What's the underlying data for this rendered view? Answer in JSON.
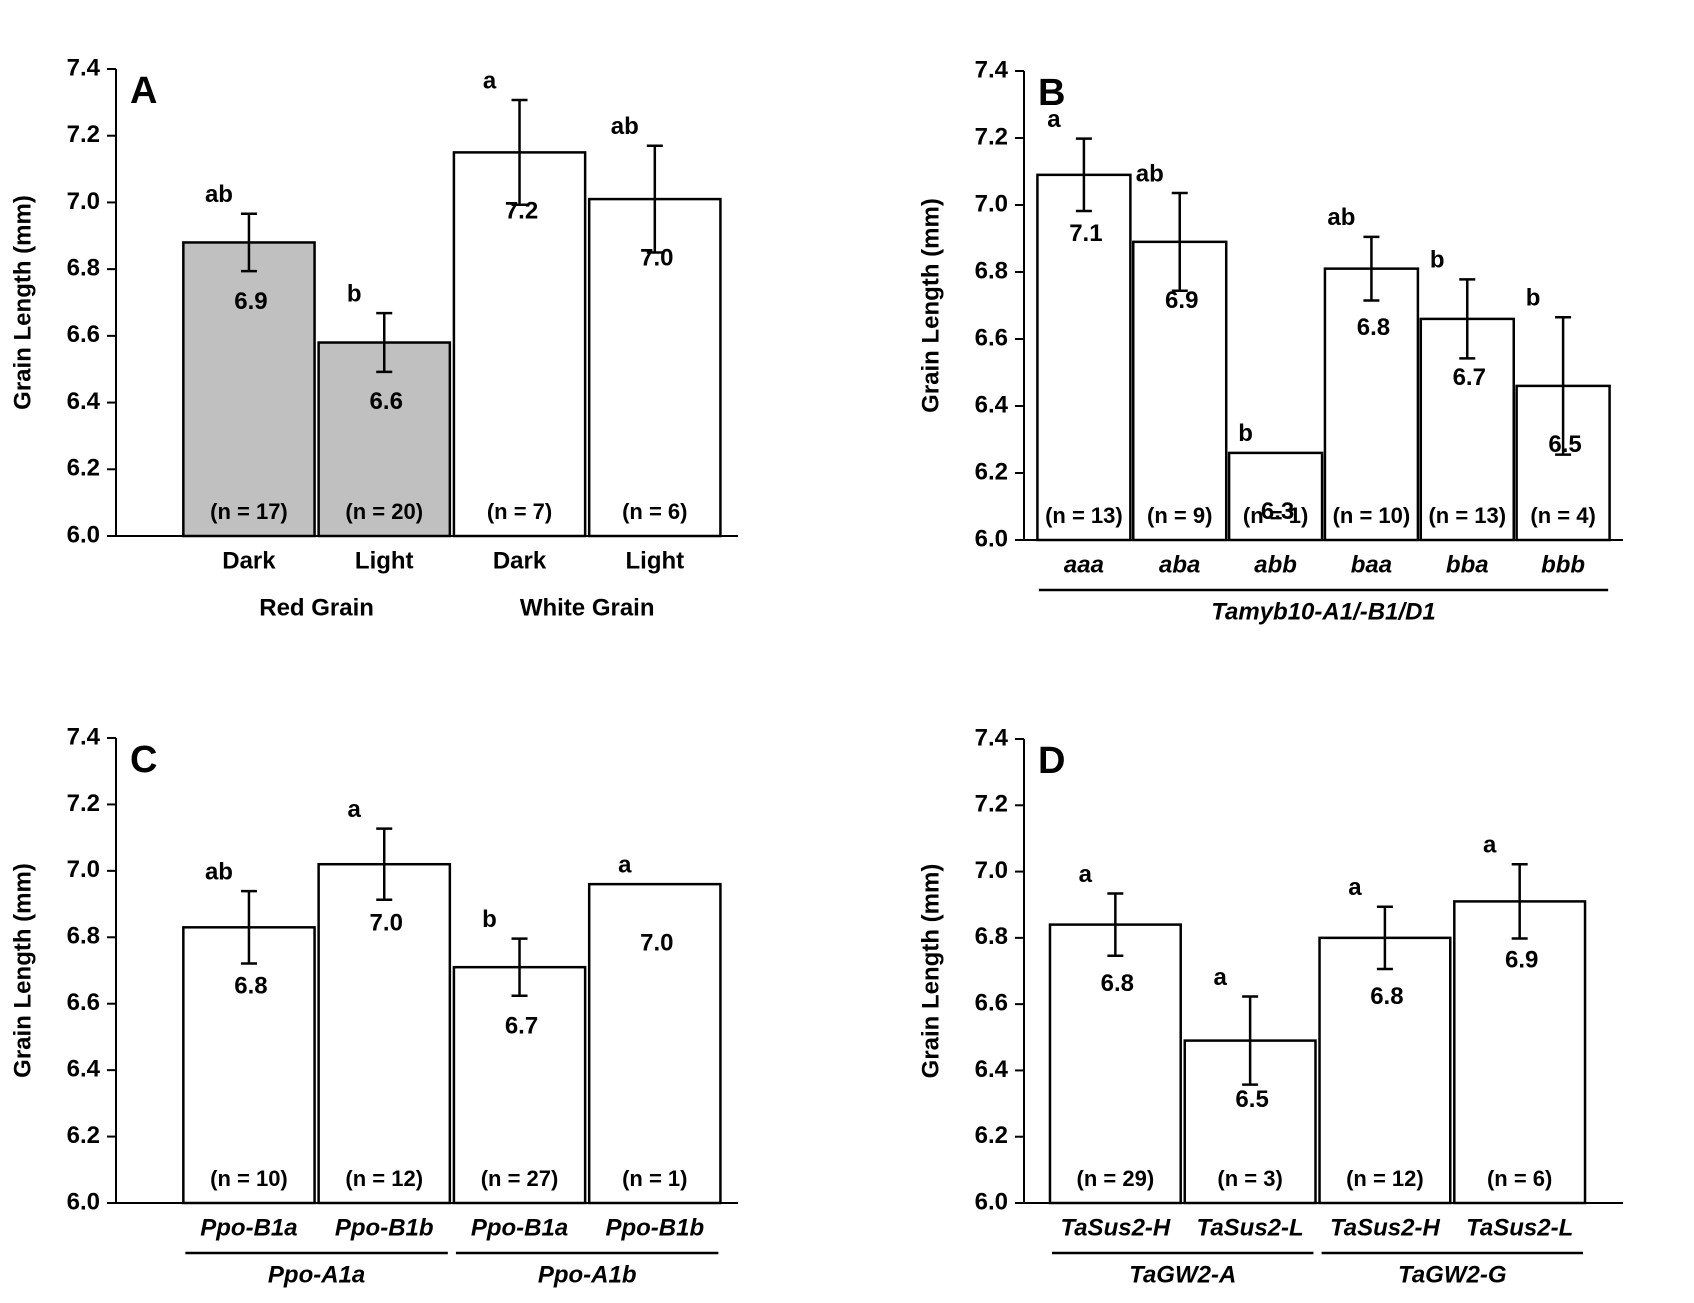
{
  "chart_data": [
    {
      "type": "bar",
      "title": "A",
      "y_label": "Grain Length (mm)",
      "ylim": [
        6.0,
        7.4
      ],
      "yticks": [
        {
          "value": 6,
          "label": "6.0"
        },
        6.2,
        6.4,
        6.6,
        6.8,
        {
          "value": 7,
          "label": "7.0"
        },
        7.2,
        7.4
      ],
      "groups": [
        {
          "label": "Red Grain",
          "categories": [
            "Dark",
            "Light"
          ]
        },
        {
          "label": "White Grain",
          "categories": [
            "Dark",
            "Light"
          ]
        }
      ],
      "group_underline": false,
      "italic_categories": false,
      "values": [
        6.88,
        6.58,
        7.15,
        7.01
      ],
      "value_labels": [
        "6.9",
        "6.6",
        "7.2",
        "7.0"
      ],
      "errors": [
        0.086,
        0.088,
        0.157,
        0.16
      ],
      "letters": [
        "ab",
        "b",
        "a",
        "ab"
      ],
      "n_labels": [
        "(n = 17)",
        "(n = 20)",
        "(n = 7)",
        "(n = 6)"
      ],
      "colors": [
        "#c0c0c0",
        "#c0c0c0",
        "#ffffff",
        "#ffffff"
      ]
    },
    {
      "type": "bar",
      "title": "B",
      "y_label": "Grain Length (mm)",
      "ylim": [
        6.0,
        7.4
      ],
      "yticks": [
        {
          "value": 6,
          "label": "6.0"
        },
        6.2,
        6.4,
        6.6,
        6.8,
        {
          "value": 7,
          "label": "7.0"
        },
        7.2,
        7.4
      ],
      "groups": [
        {
          "label": "Tamyb10-A1/-B1/D1",
          "categories": [
            "aaa",
            "aba",
            "abb",
            "baa",
            "bba",
            "bbb"
          ]
        }
      ],
      "group_underline": true,
      "italic_categories": true,
      "values": [
        7.09,
        6.89,
        6.26,
        6.81,
        6.66,
        6.46
      ],
      "value_labels": [
        "7.1",
        "6.9",
        "6.3",
        "6.8",
        "6.7",
        "6.5"
      ],
      "errors": [
        0.108,
        0.146,
        null,
        0.095,
        0.118,
        0.205
      ],
      "letters": [
        "a",
        "ab",
        "b",
        "ab",
        "b",
        "b"
      ],
      "n_labels": [
        "(n = 13)",
        "(n = 9)",
        "(n = 1)",
        "(n = 10)",
        "(n = 13)",
        "(n = 4)"
      ],
      "colors": [
        "#ffffff",
        "#ffffff",
        "#ffffff",
        "#ffffff",
        "#ffffff",
        "#ffffff"
      ]
    },
    {
      "type": "bar",
      "title": "C",
      "y_label": "Grain Length (mm)",
      "ylim": [
        6.0,
        7.4
      ],
      "yticks": [
        {
          "value": 6,
          "label": "6.0"
        },
        6.2,
        6.4,
        6.6,
        6.8,
        {
          "value": 7,
          "label": "7.0"
        },
        7.2,
        7.4
      ],
      "groups": [
        {
          "label": "Ppo-A1a",
          "categories": [
            "Ppo-B1a",
            "Ppo-B1b"
          ]
        },
        {
          "label": "Ppo-A1b",
          "categories": [
            "Ppo-B1a",
            "Ppo-B1b"
          ]
        }
      ],
      "group_underline": true,
      "italic_categories": true,
      "values": [
        6.83,
        7.02,
        6.71,
        6.96
      ],
      "value_labels": [
        "6.8",
        "7.0",
        "6.7",
        "7.0"
      ],
      "errors": [
        0.109,
        0.107,
        0.086,
        null
      ],
      "letters": [
        "ab",
        "a",
        "b",
        "a"
      ],
      "n_labels": [
        "(n = 10)",
        "(n = 12)",
        "(n = 27)",
        "(n = 1)"
      ],
      "colors": [
        "#ffffff",
        "#ffffff",
        "#ffffff",
        "#ffffff"
      ]
    },
    {
      "type": "bar",
      "title": "D",
      "y_label": "Grain Length (mm)",
      "ylim": [
        6.0,
        7.4
      ],
      "yticks": [
        {
          "value": 6,
          "label": "6.0"
        },
        6.2,
        6.4,
        6.6,
        6.8,
        {
          "value": 7,
          "label": "7.0"
        },
        7.2,
        7.4
      ],
      "groups": [
        {
          "label": "TaGW2-A",
          "categories": [
            "TaSus2-H",
            "TaSus2-L"
          ]
        },
        {
          "label": "TaGW2-G",
          "categories": [
            "TaSus2-H",
            "TaSus2-L"
          ]
        }
      ],
      "group_underline": true,
      "italic_categories": true,
      "values": [
        6.84,
        6.49,
        6.8,
        6.91
      ],
      "value_labels": [
        "6.8",
        "6.5",
        "6.8",
        "6.9"
      ],
      "errors": [
        0.094,
        0.133,
        0.094,
        0.112
      ],
      "letters": [
        "a",
        "a",
        "a",
        "a"
      ],
      "n_labels": [
        "(n = 29)",
        "(n = 3)",
        "(n = 12)",
        "(n = 6)"
      ],
      "colors": [
        "#ffffff",
        "#ffffff",
        "#ffffff",
        "#ffffff"
      ]
    }
  ]
}
